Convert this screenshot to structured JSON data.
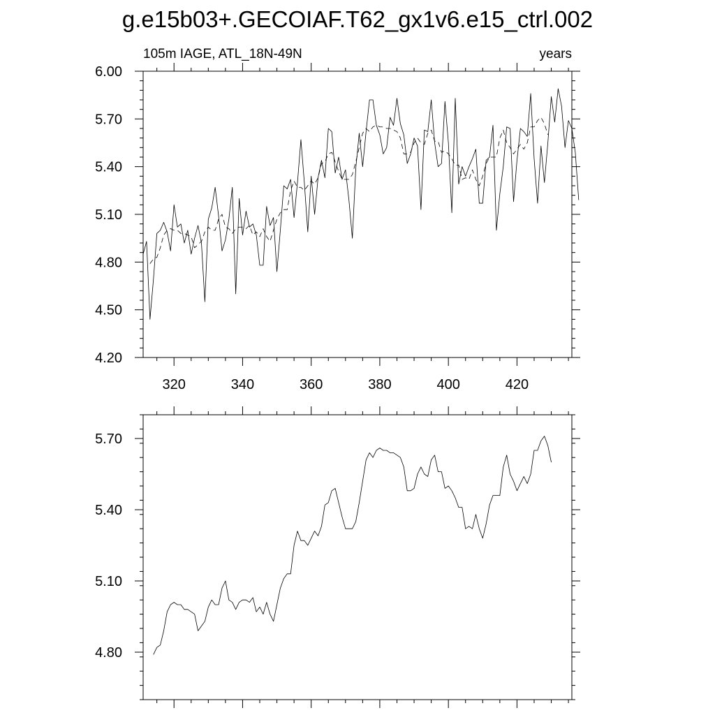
{
  "title": "g.e15b03+.GECOIAF.T62_gx1v6.e15_ctrl.002",
  "chart_data": [
    {
      "type": "line",
      "left_label": "105m IAGE, ATL_18N-49N",
      "right_label": "years",
      "xlim": [
        311,
        436
      ],
      "ylim": [
        4.2,
        6.0
      ],
      "x_ticks": [
        320,
        340,
        360,
        380,
        400,
        420
      ],
      "x_tick_labels": [
        "320",
        "340",
        "360",
        "380",
        "400",
        "420"
      ],
      "y_ticks": [
        4.2,
        4.5,
        4.8,
        5.1,
        5.4,
        5.7,
        6.0
      ],
      "y_tick_labels": [
        "4.20",
        "4.50",
        "4.80",
        "5.10",
        "5.40",
        "5.70",
        "6.00"
      ],
      "grid": false,
      "series": [
        {
          "style": "solid",
          "x_start": 311,
          "values": [
            4.85,
            4.93,
            4.44,
            4.69,
            4.98,
            5.0,
            5.05,
            4.99,
            4.87,
            5.16,
            5.02,
            5.04,
            4.92,
            5.0,
            4.85,
            4.95,
            5.03,
            4.92,
            4.55,
            5.07,
            5.14,
            5.27,
            5.09,
            4.87,
            4.94,
            5.07,
            5.27,
            4.6,
            5.2,
            4.97,
            5.12,
            5.02,
            5.04,
            4.97,
            4.78,
            4.78,
            5.15,
            5.03,
            5.08,
            4.74,
            5.0,
            5.28,
            5.26,
            5.32,
            5.08,
            5.3,
            5.57,
            5.3,
            4.99,
            5.34,
            5.1,
            5.33,
            5.44,
            5.33,
            5.64,
            5.62,
            5.36,
            5.46,
            5.32,
            5.38,
            5.19,
            4.95,
            5.39,
            5.61,
            5.4,
            5.62,
            5.82,
            5.82,
            5.66,
            5.6,
            5.48,
            5.52,
            5.71,
            5.66,
            5.83,
            5.67,
            5.6,
            5.42,
            5.48,
            5.58,
            5.53,
            5.13,
            5.63,
            5.62,
            5.82,
            5.55,
            5.4,
            5.42,
            5.81,
            5.55,
            5.11,
            5.83,
            5.29,
            5.4,
            5.34,
            5.4,
            5.45,
            5.51,
            5.17,
            5.17,
            5.44,
            5.46,
            5.66,
            5.0,
            5.23,
            5.4,
            5.65,
            5.64,
            5.18,
            5.44,
            5.64,
            5.62,
            5.59,
            5.86,
            5.45,
            5.17,
            5.53,
            5.3,
            5.55,
            5.84,
            5.68,
            5.89,
            5.78,
            5.52,
            5.69,
            5.64,
            5.49,
            5.19
          ]
        },
        {
          "style": "dashed",
          "x_start": 313,
          "values": [
            4.79,
            4.82,
            4.83,
            4.89,
            4.97,
            5.0,
            5.01,
            5.0,
            5.0,
            4.98,
            4.98,
            4.97,
            4.96,
            4.89,
            4.91,
            4.93,
            4.99,
            5.02,
            5.0,
            5.0,
            5.07,
            5.1,
            5.02,
            5.01,
            4.98,
            5.01,
            5.02,
            5.02,
            5.01,
            5.03,
            4.97,
            4.99,
            4.96,
            5.01,
            4.96,
            4.93,
            5.0,
            5.07,
            5.11,
            5.13,
            5.13,
            5.25,
            5.31,
            5.27,
            5.27,
            5.25,
            5.28,
            5.31,
            5.29,
            5.33,
            5.42,
            5.43,
            5.48,
            5.49,
            5.43,
            5.37,
            5.32,
            5.32,
            5.32,
            5.35,
            5.43,
            5.52,
            5.61,
            5.64,
            5.62,
            5.65,
            5.66,
            5.65,
            5.65,
            5.64,
            5.64,
            5.63,
            5.62,
            5.58,
            5.48,
            5.48,
            5.49,
            5.55,
            5.58,
            5.55,
            5.54,
            5.61,
            5.63,
            5.56,
            5.56,
            5.49,
            5.5,
            5.48,
            5.45,
            5.41,
            5.41,
            5.32,
            5.33,
            5.32,
            5.38,
            5.32,
            5.28,
            5.34,
            5.42,
            5.46,
            5.46,
            5.46,
            5.58,
            5.63,
            5.55,
            5.52,
            5.48,
            5.51,
            5.54,
            5.51,
            5.55,
            5.65,
            5.65,
            5.69,
            5.71,
            5.67,
            5.6
          ]
        }
      ]
    },
    {
      "type": "line",
      "xlim": [
        311,
        436
      ],
      "ylim": [
        4.6,
        5.8
      ],
      "x_ticks": [
        320,
        340,
        360,
        380,
        400,
        420
      ],
      "y_ticks": [
        4.8,
        5.1,
        5.4,
        5.7
      ],
      "y_tick_labels": [
        "4.80",
        "5.10",
        "5.40",
        "5.70"
      ],
      "grid": false,
      "series": [
        {
          "style": "solid",
          "x_start": 314,
          "values": [
            4.79,
            4.82,
            4.83,
            4.89,
            4.97,
            5.0,
            5.01,
            5.0,
            5.0,
            4.98,
            4.98,
            4.97,
            4.96,
            4.89,
            4.91,
            4.93,
            4.99,
            5.02,
            5.0,
            5.0,
            5.07,
            5.1,
            5.02,
            5.01,
            4.98,
            5.01,
            5.02,
            5.02,
            5.01,
            5.03,
            4.97,
            4.99,
            4.96,
            5.01,
            4.96,
            4.93,
            5.0,
            5.07,
            5.11,
            5.13,
            5.13,
            5.25,
            5.31,
            5.27,
            5.27,
            5.25,
            5.28,
            5.31,
            5.29,
            5.33,
            5.42,
            5.43,
            5.48,
            5.49,
            5.43,
            5.37,
            5.32,
            5.32,
            5.32,
            5.35,
            5.43,
            5.52,
            5.61,
            5.64,
            5.62,
            5.65,
            5.66,
            5.65,
            5.65,
            5.64,
            5.64,
            5.63,
            5.62,
            5.58,
            5.48,
            5.48,
            5.49,
            5.55,
            5.58,
            5.55,
            5.54,
            5.61,
            5.63,
            5.56,
            5.56,
            5.49,
            5.5,
            5.48,
            5.45,
            5.41,
            5.41,
            5.32,
            5.33,
            5.32,
            5.38,
            5.32,
            5.28,
            5.34,
            5.42,
            5.46,
            5.46,
            5.46,
            5.58,
            5.63,
            5.55,
            5.52,
            5.48,
            5.51,
            5.54,
            5.51,
            5.55,
            5.65,
            5.65,
            5.69,
            5.71,
            5.67,
            5.6
          ]
        }
      ]
    }
  ]
}
